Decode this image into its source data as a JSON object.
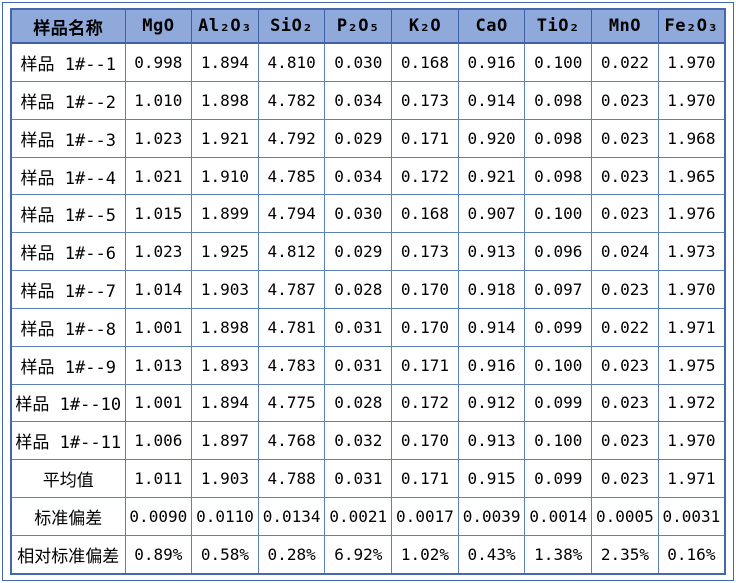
{
  "colors": {
    "header_bg": "#8fa9db",
    "header_line": "#3f62a5",
    "grid_line": "#5e82b8",
    "outer_border": "#4468a9",
    "text": "#000000"
  },
  "chart_data": {
    "type": "table",
    "title": "",
    "columns": [
      "样品名称",
      "MgO",
      "Al₂O₃",
      "SiO₂",
      "P₂O₅",
      "K₂O",
      "CaO",
      "TiO₂",
      "MnO",
      "Fe₂O₃"
    ],
    "rows": [
      {
        "label": "样品 1#--1",
        "values": [
          "0.998",
          "1.894",
          "4.810",
          "0.030",
          "0.168",
          "0.916",
          "0.100",
          "0.022",
          "1.970"
        ]
      },
      {
        "label": "样品 1#--2",
        "values": [
          "1.010",
          "1.898",
          "4.782",
          "0.034",
          "0.173",
          "0.914",
          "0.098",
          "0.023",
          "1.970"
        ]
      },
      {
        "label": "样品 1#--3",
        "values": [
          "1.023",
          "1.921",
          "4.792",
          "0.029",
          "0.171",
          "0.920",
          "0.098",
          "0.023",
          "1.968"
        ]
      },
      {
        "label": "样品 1#--4",
        "values": [
          "1.021",
          "1.910",
          "4.785",
          "0.034",
          "0.172",
          "0.921",
          "0.098",
          "0.023",
          "1.965"
        ]
      },
      {
        "label": "样品 1#--5",
        "values": [
          "1.015",
          "1.899",
          "4.794",
          "0.030",
          "0.168",
          "0.907",
          "0.100",
          "0.023",
          "1.976"
        ]
      },
      {
        "label": "样品 1#--6",
        "values": [
          "1.023",
          "1.925",
          "4.812",
          "0.029",
          "0.173",
          "0.913",
          "0.096",
          "0.024",
          "1.973"
        ]
      },
      {
        "label": "样品 1#--7",
        "values": [
          "1.014",
          "1.903",
          "4.787",
          "0.028",
          "0.170",
          "0.918",
          "0.097",
          "0.023",
          "1.970"
        ]
      },
      {
        "label": "样品 1#--8",
        "values": [
          "1.001",
          "1.898",
          "4.781",
          "0.031",
          "0.170",
          "0.914",
          "0.099",
          "0.022",
          "1.971"
        ]
      },
      {
        "label": "样品 1#--9",
        "values": [
          "1.013",
          "1.893",
          "4.783",
          "0.031",
          "0.171",
          "0.916",
          "0.100",
          "0.023",
          "1.975"
        ]
      },
      {
        "label": "样品 1#--10",
        "values": [
          "1.001",
          "1.894",
          "4.775",
          "0.028",
          "0.172",
          "0.912",
          "0.099",
          "0.023",
          "1.972"
        ]
      },
      {
        "label": "样品 1#--11",
        "values": [
          "1.006",
          "1.897",
          "4.768",
          "0.032",
          "0.170",
          "0.913",
          "0.100",
          "0.023",
          "1.970"
        ]
      },
      {
        "label": "平均值",
        "values": [
          "1.011",
          "1.903",
          "4.788",
          "0.031",
          "0.171",
          "0.915",
          "0.099",
          "0.023",
          "1.971"
        ]
      },
      {
        "label": "标准偏差",
        "values": [
          "0.0090",
          "0.0110",
          "0.0134",
          "0.0021",
          "0.0017",
          "0.0039",
          "0.0014",
          "0.0005",
          "0.0031"
        ]
      },
      {
        "label": "相对标准偏差",
        "values": [
          "0.89%",
          "0.58%",
          "0.28%",
          "6.92%",
          "1.02%",
          "0.43%",
          "1.38%",
          "2.35%",
          "0.16%"
        ]
      }
    ]
  }
}
